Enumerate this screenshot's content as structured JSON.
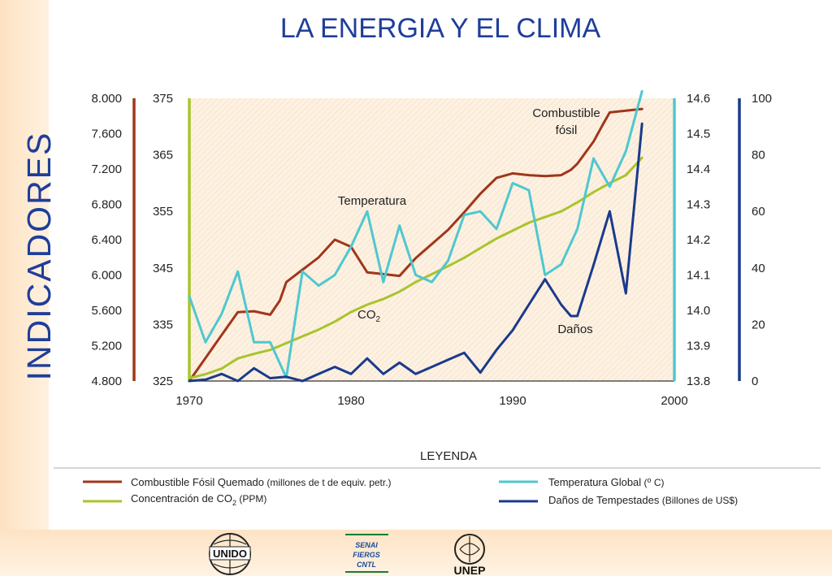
{
  "title": "LA ENERGIA Y EL CLIMA",
  "side_title": "INDICADORES",
  "legend": {
    "heading": "LEYENDA",
    "items": [
      {
        "label": "Combustible Fósil Quemado",
        "unit": " (millones de t de equiv. petr.)",
        "color": "#a0361a"
      },
      {
        "label": "Concentración de CO",
        "sub": "2",
        "unit": " (PPM)",
        "color": "#a8c42c"
      },
      {
        "label": "Temperatura Global",
        "unit": " (",
        "unit_sup": "o",
        "unit_tail": " C)",
        "color": "#4ec8cf"
      },
      {
        "label": "Daños de Tempestades",
        "unit": " (Billones de US$)",
        "color": "#1a3a8c"
      }
    ]
  },
  "annotations": {
    "combustible_line1": "Combustible",
    "combustible_line2": "fósil",
    "temperatura": "Temperatura",
    "co2": "CO",
    "co2_sub": "2",
    "danos": "Daños"
  },
  "logos": {
    "unido": "UNIDO",
    "senai_lines": [
      "SENAI",
      "FIERGS",
      "CNTL"
    ],
    "unep": "UNEP"
  },
  "chart_data": {
    "type": "line",
    "x_ticks": [
      "1970",
      "1980",
      "1990",
      "2000"
    ],
    "xlim": [
      1970,
      2000
    ],
    "axes": {
      "fossil": {
        "ticks": [
          "4.800",
          "5.200",
          "5.600",
          "6.000",
          "6.400",
          "6.800",
          "7.200",
          "7.600",
          "8.000"
        ],
        "range": [
          4800,
          8000
        ],
        "color": "#a0361a"
      },
      "co2": {
        "ticks": [
          "325",
          "335",
          "345",
          "355",
          "365",
          "375"
        ],
        "range": [
          325,
          375
        ],
        "color": "#a8c42c"
      },
      "temp": {
        "ticks": [
          "13.8",
          "13.9",
          "14.0",
          "14.1",
          "14.2",
          "14.3",
          "14.4",
          "14.5",
          "14.6"
        ],
        "range": [
          13.8,
          14.6
        ],
        "color": "#4ec8cf"
      },
      "damage": {
        "ticks": [
          "0",
          "20",
          "40",
          "60",
          "80",
          "100"
        ],
        "range": [
          0,
          100
        ],
        "color": "#1a3a8c"
      }
    },
    "series": [
      {
        "name": "Combustible Fósil Quemado",
        "axis": "fossil",
        "color": "#a0361a",
        "x": [
          1970,
          1971,
          1972,
          1973,
          1974,
          1975,
          1975.6,
          1976,
          1977,
          1978,
          1979,
          1980,
          1981,
          1982,
          1983,
          1984,
          1985,
          1986,
          1987,
          1988,
          1989,
          1990,
          1991,
          1992,
          1993,
          1993.6,
          1994,
          1995,
          1995.6,
          1996,
          1997,
          1998
        ],
        "y": [
          4800,
          5060,
          5320,
          5580,
          5590,
          5550,
          5710,
          5920,
          6060,
          6200,
          6400,
          6320,
          6030,
          6010,
          5990,
          6190,
          6350,
          6510,
          6710,
          6920,
          7100,
          7150,
          7130,
          7120,
          7130,
          7190,
          7260,
          7510,
          7710,
          7840,
          7860,
          7880
        ]
      },
      {
        "name": "Concentración de CO2",
        "axis": "co2",
        "color": "#a8c42c",
        "x": [
          1970,
          1971,
          1972,
          1973,
          1974,
          1975,
          1976,
          1977,
          1978,
          1979,
          1980,
          1981,
          1982,
          1983,
          1984,
          1985,
          1986,
          1987,
          1988,
          1989,
          1990,
          1991,
          1992,
          1993,
          1994,
          1995,
          1996,
          1997,
          1998
        ],
        "y": [
          325.5,
          326.2,
          327.2,
          329.0,
          329.8,
          330.5,
          331.7,
          332.9,
          334.1,
          335.5,
          337.2,
          338.5,
          339.5,
          340.8,
          342.5,
          343.9,
          345.3,
          346.8,
          348.5,
          350.2,
          351.6,
          353.0,
          354.0,
          355.0,
          356.6,
          358.4,
          360.0,
          361.4,
          364.5
        ]
      },
      {
        "name": "Temperatura Global",
        "axis": "temp",
        "color": "#4ec8cf",
        "x": [
          1970,
          1971,
          1972,
          1973,
          1974,
          1975,
          1976,
          1977,
          1978,
          1979,
          1980,
          1981,
          1982,
          1983,
          1984,
          1985,
          1986,
          1987,
          1988,
          1989,
          1990,
          1991,
          1992,
          1993,
          1994,
          1995,
          1996,
          1997,
          1998
        ],
        "y": [
          14.04,
          13.91,
          13.99,
          14.11,
          13.91,
          13.91,
          13.81,
          14.11,
          14.07,
          14.1,
          14.18,
          14.28,
          14.08,
          14.24,
          14.1,
          14.08,
          14.14,
          14.27,
          14.28,
          14.23,
          14.36,
          14.34,
          14.1,
          14.13,
          14.23,
          14.43,
          14.35,
          14.45,
          14.62
        ]
      },
      {
        "name": "Daños de Tempestades",
        "axis": "damage",
        "color": "#1a3a8c",
        "x": [
          1970,
          1971,
          1972,
          1973,
          1974,
          1975,
          1976,
          1977,
          1978,
          1979,
          1980,
          1981,
          1982,
          1983,
          1984,
          1985,
          1986,
          1987,
          1988,
          1989,
          1990,
          1991,
          1992,
          1993,
          1993.6,
          1994,
          1995,
          1996,
          1997,
          1998
        ],
        "y": [
          0,
          0.5,
          2.5,
          0,
          4.5,
          1,
          1.5,
          0,
          2.5,
          5,
          2.5,
          8,
          2.5,
          6.5,
          2.5,
          5,
          7.5,
          10,
          3,
          11,
          18,
          27,
          36,
          27,
          23,
          23,
          41,
          60,
          31,
          91
        ]
      }
    ]
  }
}
